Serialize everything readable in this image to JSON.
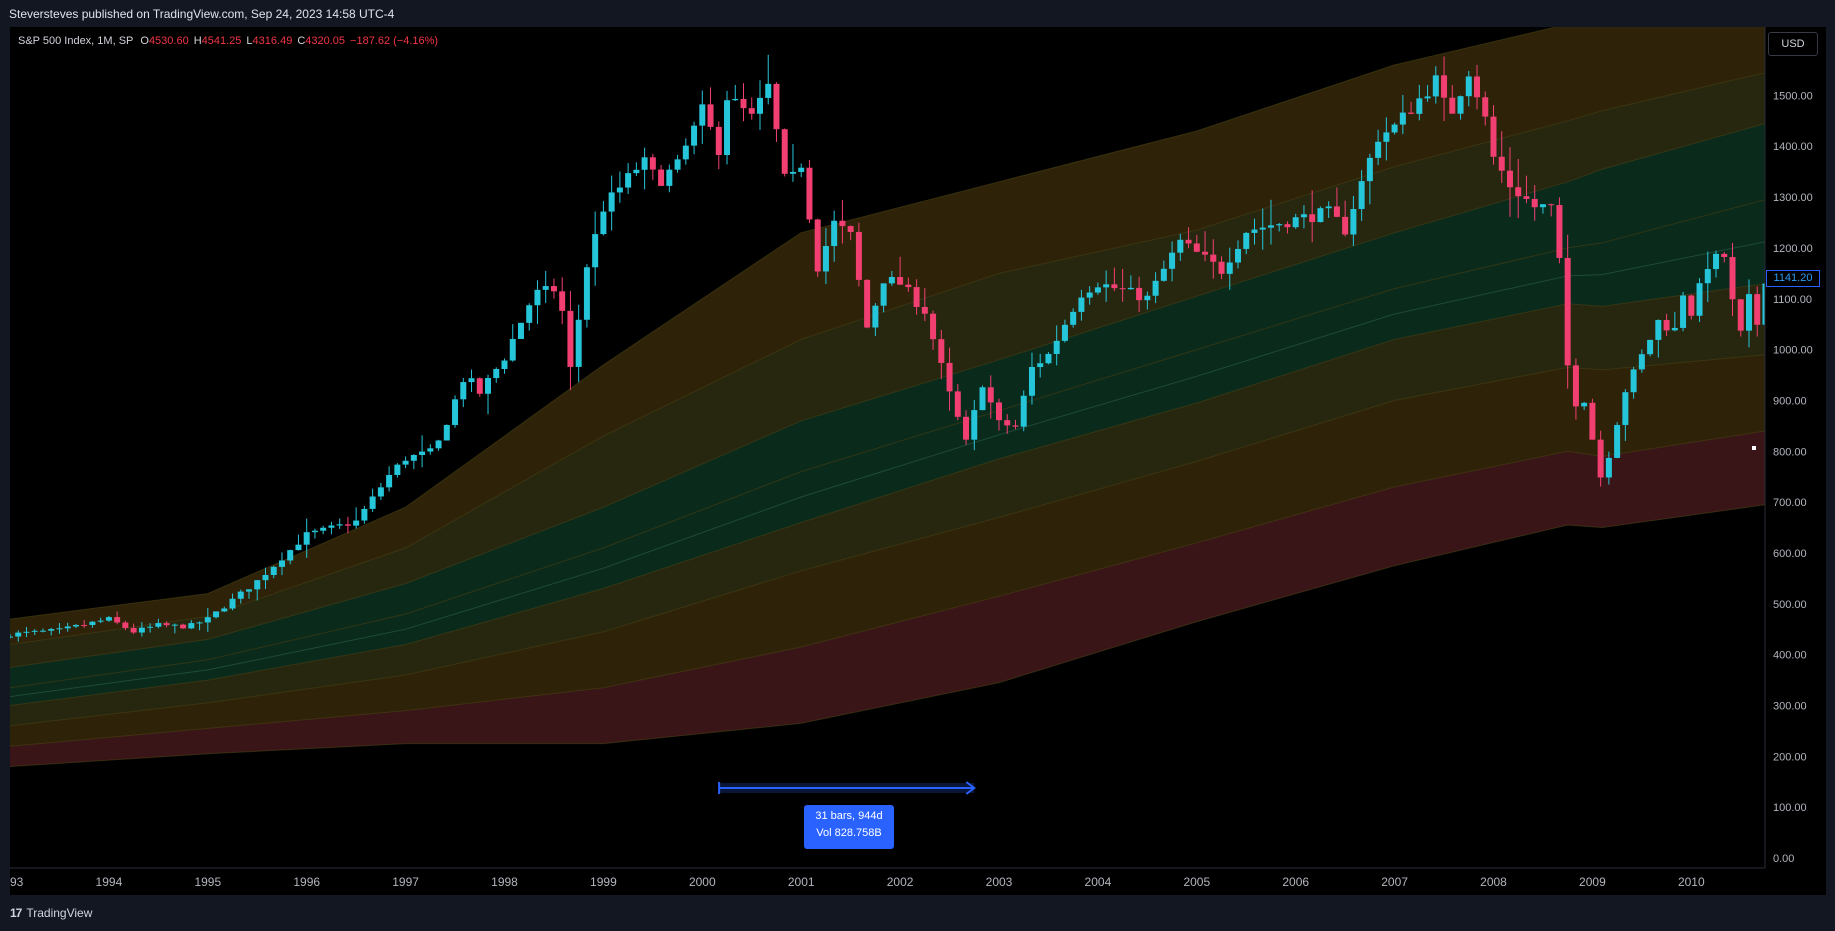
{
  "published_line": "Steversteves published on TradingView.com, Sep 24, 2023 14:58 UTC-4",
  "brand": {
    "logo": "17",
    "name": "TradingView"
  },
  "legend": {
    "symbol": "S&P 500 Index, 1M, SP",
    "o_label": "O",
    "o_value": "4530.60",
    "h_label": "H",
    "h_value": "4541.25",
    "l_label": "L",
    "l_value": "4316.49",
    "c_label": "C",
    "c_value": "4320.05",
    "change": "−187.62 (−4.16%)"
  },
  "currency": "USD",
  "last_price": "1141.20",
  "measure": {
    "bars": "31 bars, 944d",
    "vol": "Vol 828.758B"
  },
  "colors": {
    "up": "#26c6da",
    "down": "#f23f72",
    "background": "#000000",
    "axis_text": "#b2b5be",
    "measure": "#2962ff",
    "band_red": "#3a1518",
    "band_amber": "#2e2208",
    "band_olive": "#272710",
    "band_green": "#0a2a1c"
  },
  "chart_data": {
    "type": "candlestick",
    "title": "S&P 500 Index, 1M, SP",
    "ylim": [
      0,
      1600
    ],
    "y_ticks": [
      "0.00",
      "100.00",
      "200.00",
      "300.00",
      "400.00",
      "500.00",
      "600.00",
      "700.00",
      "800.00",
      "900.00",
      "1000.00",
      "1100.00",
      "1200.00",
      "1300.00",
      "1400.00",
      "1500.00"
    ],
    "x_range": [
      1993.0,
      2010.75
    ],
    "x_ticks": [
      "93",
      "1994",
      "1995",
      "1996",
      "1997",
      "1998",
      "1999",
      "2000",
      "2001",
      "2002",
      "2003",
      "2004",
      "2005",
      "2006",
      "2007",
      "2008",
      "2009",
      "2010"
    ],
    "anchor_closes": [
      [
        1993.0,
        440
      ],
      [
        1993.5,
        448
      ],
      [
        1994.0,
        470
      ],
      [
        1994.25,
        445
      ],
      [
        1994.5,
        458
      ],
      [
        1994.8,
        455
      ],
      [
        1995.0,
        470
      ],
      [
        1995.5,
        545
      ],
      [
        1996.0,
        636
      ],
      [
        1996.5,
        662
      ],
      [
        1996.85,
        757
      ],
      [
        1997.0,
        786
      ],
      [
        1997.3,
        801
      ],
      [
        1997.6,
        950
      ],
      [
        1997.75,
        915
      ],
      [
        1998.0,
        985
      ],
      [
        1998.3,
        1110
      ],
      [
        1998.55,
        1120
      ],
      [
        1998.67,
        957
      ],
      [
        1998.83,
        1163
      ],
      [
        1999.0,
        1279
      ],
      [
        1999.4,
        1372
      ],
      [
        1999.55,
        1330
      ],
      [
        1999.75,
        1362
      ],
      [
        2000.0,
        1469
      ],
      [
        2000.17,
        1394
      ],
      [
        2000.25,
        1498
      ],
      [
        2000.5,
        1455
      ],
      [
        2000.67,
        1517
      ],
      [
        2000.85,
        1315
      ],
      [
        2001.0,
        1366
      ],
      [
        2001.17,
        1160
      ],
      [
        2001.33,
        1249
      ],
      [
        2001.5,
        1224
      ],
      [
        2001.67,
        1040
      ],
      [
        2001.83,
        1139
      ],
      [
        2002.0,
        1130
      ],
      [
        2002.25,
        1076
      ],
      [
        2002.5,
        912
      ],
      [
        2002.67,
        815
      ],
      [
        2002.83,
        936
      ],
      [
        2003.0,
        855
      ],
      [
        2003.17,
        848
      ],
      [
        2003.33,
        963
      ],
      [
        2003.5,
        990
      ],
      [
        2003.83,
        1111
      ],
      [
        2004.0,
        1131
      ],
      [
        2004.5,
        1101
      ],
      [
        2004.83,
        1212
      ],
      [
        2005.25,
        1156
      ],
      [
        2005.5,
        1234
      ],
      [
        2005.83,
        1249
      ],
      [
        2006.33,
        1270
      ],
      [
        2006.5,
        1236
      ],
      [
        2006.83,
        1418
      ],
      [
        2007.0,
        1438
      ],
      [
        2007.2,
        1482
      ],
      [
        2007.42,
        1530
      ],
      [
        2007.55,
        1455
      ],
      [
        2007.75,
        1549
      ],
      [
        2007.9,
        1468
      ],
      [
        2008.0,
        1378
      ],
      [
        2008.17,
        1322
      ],
      [
        2008.42,
        1280
      ],
      [
        2008.58,
        1282
      ],
      [
        2008.67,
        1166
      ],
      [
        2008.75,
        968
      ],
      [
        2008.83,
        896
      ],
      [
        2008.92,
        903
      ],
      [
        2009.0,
        825
      ],
      [
        2009.1,
        735
      ],
      [
        2009.17,
        797
      ],
      [
        2009.33,
        919
      ],
      [
        2009.5,
        987
      ],
      [
        2009.67,
        1057
      ],
      [
        2009.83,
        1036
      ],
      [
        2009.92,
        1115
      ],
      [
        2010.0,
        1073
      ],
      [
        2010.17,
        1169
      ],
      [
        2010.33,
        1187
      ],
      [
        2010.42,
        1089
      ],
      [
        2010.5,
        1030
      ],
      [
        2010.58,
        1101
      ],
      [
        2010.67,
        1049
      ],
      [
        2010.75,
        1141
      ]
    ],
    "bands": {
      "x": [
        1993.0,
        1995.0,
        1997.0,
        1999.0,
        2001.0,
        2003.0,
        2005.0,
        2007.0,
        2008.75,
        2009.1,
        2010.75
      ],
      "levels": [
        [
          180,
          205,
          225,
          225,
          265,
          345,
          465,
          575,
          655,
          650,
          695
        ],
        [
          220,
          255,
          290,
          335,
          415,
          515,
          620,
          730,
          800,
          790,
          840
        ],
        [
          260,
          305,
          360,
          445,
          565,
          670,
          780,
          900,
          965,
          960,
          990
        ],
        [
          300,
          350,
          420,
          530,
          660,
          785,
          895,
          1020,
          1090,
          1085,
          1130
        ],
        [
          335,
          390,
          480,
          610,
          760,
          880,
          1000,
          1120,
          1200,
          1210,
          1295
        ],
        [
          375,
          430,
          540,
          690,
          860,
          980,
          1105,
          1230,
          1330,
          1355,
          1445
        ],
        [
          420,
          475,
          610,
          830,
          1020,
          1150,
          1235,
          1360,
          1450,
          1470,
          1545
        ],
        [
          470,
          520,
          690,
          970,
          1230,
          1330,
          1430,
          1560,
          1640,
          1660,
          1720
        ]
      ],
      "fills": [
        "band_red",
        "band_amber",
        "band_olive",
        "band_green",
        "band_green",
        "band_olive",
        "band_amber"
      ]
    },
    "measure_span": [
      2000.17,
      2002.75
    ]
  }
}
